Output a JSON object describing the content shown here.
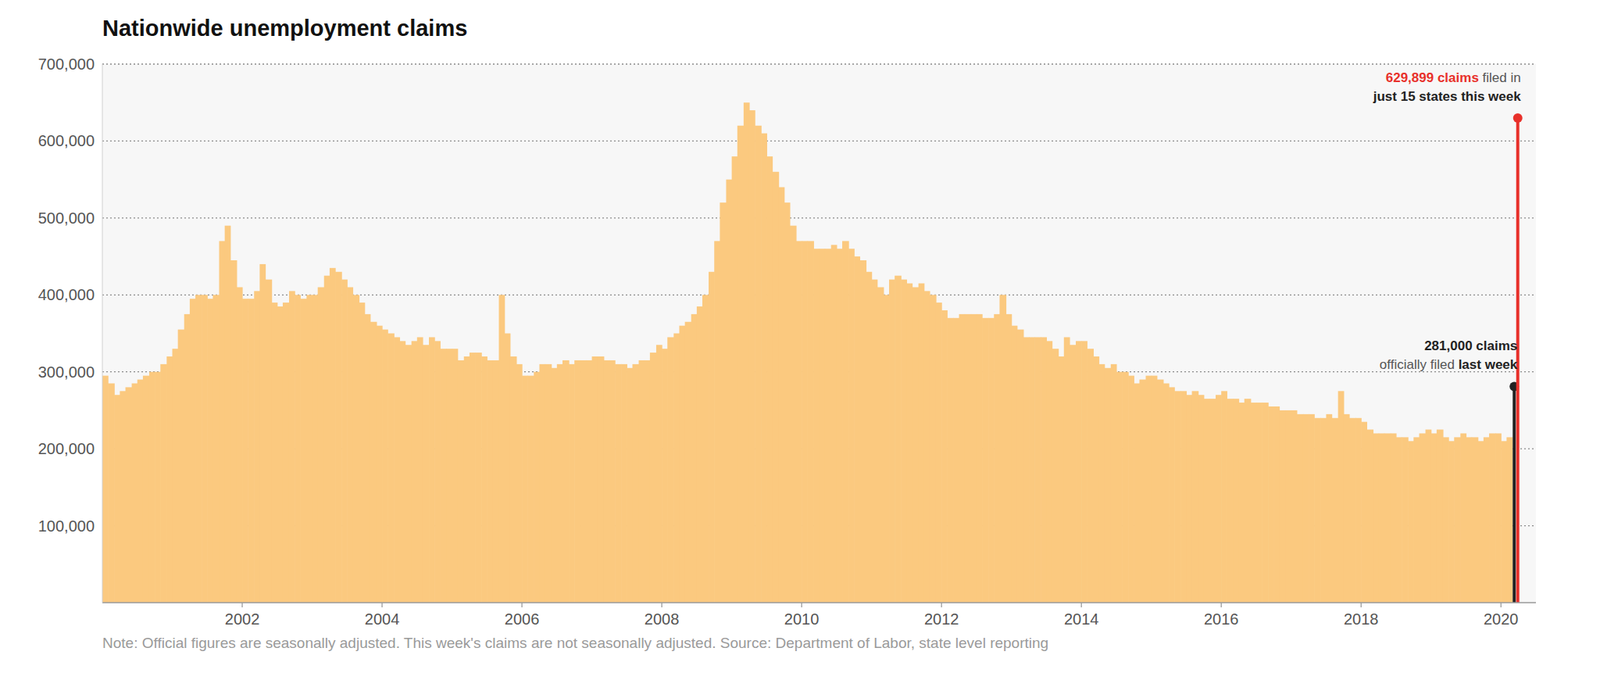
{
  "chart_data": {
    "type": "bar",
    "title": "Nationwide unemployment claims",
    "note": "Note: Official figures are seasonally adjusted. This week's claims are not seasonally adjusted. Source: Department of Labor, state level reporting",
    "color": "#fbc97f",
    "grid": true,
    "xlim": [
      2000,
      2020.5
    ],
    "xticks": [
      2002,
      2004,
      2006,
      2008,
      2010,
      2012,
      2014,
      2016,
      2018,
      2020
    ],
    "ylim": [
      0,
      700000
    ],
    "yticks": [
      {
        "value": 100000,
        "label": "100,000"
      },
      {
        "value": 200000,
        "label": "200,000"
      },
      {
        "value": 300000,
        "label": "300,000"
      },
      {
        "value": 400000,
        "label": "400,000"
      },
      {
        "value": 500000,
        "label": "500,000"
      },
      {
        "value": 600000,
        "label": "600,000"
      },
      {
        "value": 700000,
        "label": "700,000"
      }
    ],
    "x": [
      2000,
      2000.08,
      2000.17,
      2000.25,
      2000.33,
      2000.42,
      2000.5,
      2000.58,
      2000.67,
      2000.75,
      2000.83,
      2000.92,
      2001,
      2001.08,
      2001.17,
      2001.25,
      2001.33,
      2001.42,
      2001.5,
      2001.58,
      2001.67,
      2001.75,
      2001.83,
      2001.92,
      2002,
      2002.08,
      2002.17,
      2002.25,
      2002.33,
      2002.42,
      2002.5,
      2002.58,
      2002.67,
      2002.75,
      2002.83,
      2002.92,
      2003,
      2003.08,
      2003.17,
      2003.25,
      2003.33,
      2003.42,
      2003.5,
      2003.58,
      2003.67,
      2003.75,
      2003.83,
      2003.92,
      2004,
      2004.08,
      2004.17,
      2004.25,
      2004.33,
      2004.42,
      2004.5,
      2004.58,
      2004.67,
      2004.75,
      2004.83,
      2004.92,
      2005,
      2005.08,
      2005.17,
      2005.25,
      2005.33,
      2005.42,
      2005.5,
      2005.58,
      2005.67,
      2005.75,
      2005.83,
      2005.92,
      2006,
      2006.08,
      2006.17,
      2006.25,
      2006.33,
      2006.42,
      2006.5,
      2006.58,
      2006.67,
      2006.75,
      2006.83,
      2006.92,
      2007,
      2007.08,
      2007.17,
      2007.25,
      2007.33,
      2007.42,
      2007.5,
      2007.58,
      2007.67,
      2007.75,
      2007.83,
      2007.92,
      2008,
      2008.08,
      2008.17,
      2008.25,
      2008.33,
      2008.42,
      2008.5,
      2008.58,
      2008.67,
      2008.75,
      2008.83,
      2008.92,
      2009,
      2009.08,
      2009.17,
      2009.25,
      2009.33,
      2009.42,
      2009.5,
      2009.58,
      2009.67,
      2009.75,
      2009.83,
      2009.92,
      2010,
      2010.08,
      2010.17,
      2010.25,
      2010.33,
      2010.42,
      2010.5,
      2010.58,
      2010.67,
      2010.75,
      2010.83,
      2010.92,
      2011,
      2011.08,
      2011.17,
      2011.25,
      2011.33,
      2011.42,
      2011.5,
      2011.58,
      2011.67,
      2011.75,
      2011.83,
      2011.92,
      2012,
      2012.08,
      2012.17,
      2012.25,
      2012.33,
      2012.42,
      2012.5,
      2012.58,
      2012.67,
      2012.75,
      2012.83,
      2012.92,
      2013,
      2013.08,
      2013.17,
      2013.25,
      2013.33,
      2013.42,
      2013.5,
      2013.58,
      2013.67,
      2013.75,
      2013.83,
      2013.92,
      2014,
      2014.08,
      2014.17,
      2014.25,
      2014.33,
      2014.42,
      2014.5,
      2014.58,
      2014.67,
      2014.75,
      2014.83,
      2014.92,
      2015,
      2015.08,
      2015.17,
      2015.25,
      2015.33,
      2015.42,
      2015.5,
      2015.58,
      2015.67,
      2015.75,
      2015.83,
      2015.92,
      2016,
      2016.08,
      2016.17,
      2016.25,
      2016.33,
      2016.42,
      2016.5,
      2016.58,
      2016.67,
      2016.75,
      2016.83,
      2016.92,
      2017,
      2017.08,
      2017.17,
      2017.25,
      2017.33,
      2017.42,
      2017.5,
      2017.58,
      2017.67,
      2017.75,
      2017.83,
      2017.92,
      2018,
      2018.08,
      2018.17,
      2018.25,
      2018.33,
      2018.42,
      2018.5,
      2018.58,
      2018.67,
      2018.75,
      2018.83,
      2018.92,
      2019,
      2019.08,
      2019.17,
      2019.25,
      2019.33,
      2019.42,
      2019.5,
      2019.58,
      2019.67,
      2019.75,
      2019.83,
      2019.92,
      2020,
      2020.08
    ],
    "values": [
      295000,
      285000,
      270000,
      275000,
      280000,
      285000,
      290000,
      295000,
      300000,
      300000,
      310000,
      320000,
      330000,
      355000,
      375000,
      395000,
      400000,
      400000,
      395000,
      400000,
      470000,
      490000,
      445000,
      410000,
      395000,
      395000,
      405000,
      440000,
      420000,
      390000,
      385000,
      390000,
      405000,
      400000,
      395000,
      400000,
      400000,
      410000,
      425000,
      435000,
      430000,
      420000,
      410000,
      400000,
      390000,
      375000,
      365000,
      360000,
      355000,
      350000,
      345000,
      340000,
      335000,
      340000,
      345000,
      335000,
      345000,
      340000,
      330000,
      330000,
      330000,
      315000,
      320000,
      325000,
      325000,
      320000,
      315000,
      315000,
      400000,
      350000,
      320000,
      310000,
      295000,
      295000,
      300000,
      310000,
      310000,
      305000,
      310000,
      315000,
      310000,
      315000,
      315000,
      315000,
      320000,
      320000,
      315000,
      315000,
      310000,
      310000,
      305000,
      310000,
      315000,
      315000,
      325000,
      335000,
      330000,
      345000,
      350000,
      360000,
      365000,
      375000,
      385000,
      400000,
      430000,
      470000,
      520000,
      550000,
      580000,
      620000,
      650000,
      640000,
      620000,
      610000,
      580000,
      560000,
      540000,
      520000,
      490000,
      470000,
      470000,
      470000,
      460000,
      460000,
      460000,
      465000,
      460000,
      470000,
      460000,
      450000,
      445000,
      430000,
      420000,
      410000,
      400000,
      420000,
      425000,
      420000,
      415000,
      410000,
      415000,
      405000,
      400000,
      390000,
      380000,
      370000,
      370000,
      375000,
      375000,
      375000,
      375000,
      370000,
      370000,
      375000,
      400000,
      375000,
      360000,
      355000,
      345000,
      345000,
      345000,
      345000,
      340000,
      330000,
      320000,
      345000,
      335000,
      340000,
      340000,
      330000,
      320000,
      310000,
      305000,
      310000,
      300000,
      300000,
      295000,
      285000,
      290000,
      295000,
      295000,
      290000,
      285000,
      280000,
      275000,
      275000,
      270000,
      275000,
      270000,
      265000,
      265000,
      270000,
      275000,
      265000,
      265000,
      260000,
      265000,
      260000,
      260000,
      260000,
      255000,
      255000,
      250000,
      250000,
      250000,
      245000,
      245000,
      245000,
      240000,
      240000,
      245000,
      240000,
      275000,
      245000,
      240000,
      240000,
      235000,
      225000,
      220000,
      220000,
      220000,
      220000,
      215000,
      215000,
      210000,
      215000,
      220000,
      225000,
      220000,
      225000,
      215000,
      210000,
      215000,
      220000,
      215000,
      215000,
      210000,
      215000,
      220000,
      220000,
      210000,
      215000
    ],
    "annotations": [
      {
        "x": 2020.19,
        "value": 281000,
        "color": "#222222",
        "lines": [
          [
            "281,000 claims"
          ],
          [
            "officially filed ",
            "last week"
          ]
        ]
      },
      {
        "x": 2020.24,
        "value": 629899,
        "color": "#e8302a",
        "lines": [
          [
            "629,899 claims",
            " filed in"
          ],
          [
            "just 15 states this week"
          ]
        ]
      }
    ]
  }
}
